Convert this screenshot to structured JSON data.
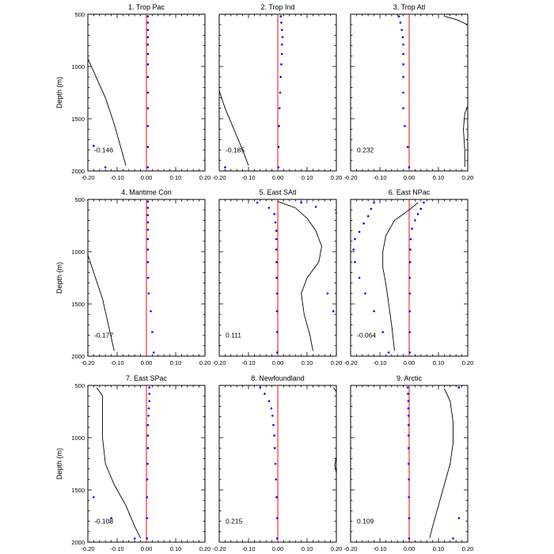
{
  "chart_data": {
    "type": "line",
    "colors": {
      "zero_line": "#ff0000",
      "dots": "#0000ff",
      "curve": "#000000",
      "frame": "#000000"
    },
    "shared": {
      "xlim": [
        -0.2,
        0.2
      ],
      "ylim": [
        500,
        2000
      ],
      "y_inverted": true,
      "x_tick_labels": [
        "-0.20",
        "-0.10",
        "0.00",
        "0.10",
        "0.20"
      ],
      "x_tick_values": [
        -0.2,
        -0.1,
        0.0,
        0.1,
        0.2
      ],
      "y_tick_labels": [
        "500",
        "1000",
        "1500",
        "2000"
      ],
      "y_tick_values": [
        500,
        1000,
        1500,
        2000
      ],
      "ylabel": "Depth (m)"
    },
    "panels": [
      {
        "title": "1. Trop Pac",
        "correlation": "-0.146",
        "curve": [
          [
            -0.22,
            800
          ],
          [
            -0.18,
            1050
          ],
          [
            -0.14,
            1300
          ],
          [
            -0.11,
            1550
          ],
          [
            -0.09,
            1750
          ],
          [
            -0.07,
            1950
          ]
        ],
        "dots": [
          [
            0.005,
            520
          ],
          [
            0.005,
            580
          ],
          [
            0.005,
            650
          ],
          [
            0.005,
            720
          ],
          [
            0.005,
            790
          ],
          [
            0.005,
            880
          ],
          [
            0.005,
            980
          ],
          [
            0.005,
            1100
          ],
          [
            0.005,
            1250
          ],
          [
            0.005,
            1400
          ],
          [
            0.005,
            1570
          ],
          [
            0.005,
            1770
          ],
          [
            -0.18,
            1760
          ],
          [
            -0.14,
            1965
          ],
          [
            0.005,
            1965
          ]
        ]
      },
      {
        "title": "2. Trop Ind",
        "correlation": "-0.185",
        "curve": [
          [
            -0.2,
            1230
          ],
          [
            -0.18,
            1400
          ],
          [
            -0.15,
            1600
          ],
          [
            -0.12,
            1800
          ],
          [
            -0.1,
            1950
          ]
        ],
        "dots": [
          [
            0.01,
            520
          ],
          [
            0.012,
            580
          ],
          [
            0.014,
            650
          ],
          [
            0.016,
            720
          ],
          [
            0.014,
            790
          ],
          [
            0.014,
            880
          ],
          [
            0.012,
            980
          ],
          [
            0.01,
            1100
          ],
          [
            0.008,
            1250
          ],
          [
            0.006,
            1400
          ],
          [
            0.004,
            1570
          ],
          [
            0.003,
            1770
          ],
          [
            0.002,
            1965
          ],
          [
            -0.18,
            1965
          ]
        ]
      },
      {
        "title": "3. Trop Atl",
        "correlation": "0.232",
        "curve": [
          [
            0.12,
            520
          ],
          [
            0.16,
            550
          ],
          [
            0.2,
            600
          ],
          "break",
          [
            0.2,
            1380
          ],
          [
            0.19,
            1450
          ],
          [
            0.185,
            1600
          ],
          [
            0.19,
            1800
          ],
          [
            0.19,
            1960
          ]
        ],
        "dots": [
          [
            -0.035,
            520
          ],
          [
            -0.03,
            580
          ],
          [
            -0.025,
            650
          ],
          [
            -0.022,
            720
          ],
          [
            -0.02,
            790
          ],
          [
            -0.02,
            880
          ],
          [
            -0.02,
            980
          ],
          [
            -0.02,
            1100
          ],
          [
            -0.02,
            1250
          ],
          [
            -0.02,
            1400
          ],
          [
            -0.015,
            1570
          ],
          [
            -0.005,
            1770
          ],
          [
            0.0,
            1965
          ]
        ]
      },
      {
        "title": "4. Maritime Con",
        "correlation": "-0.177",
        "curve": [
          [
            -0.2,
            1030
          ],
          [
            -0.18,
            1200
          ],
          [
            -0.15,
            1450
          ],
          [
            -0.13,
            1700
          ],
          [
            -0.11,
            1950
          ]
        ],
        "dots": [
          [
            0.005,
            520
          ],
          [
            0.005,
            580
          ],
          [
            0.005,
            650
          ],
          [
            0.005,
            720
          ],
          [
            0.005,
            790
          ],
          [
            0.005,
            880
          ],
          [
            0.005,
            980
          ],
          [
            0.005,
            1100
          ],
          [
            0.006,
            1250
          ],
          [
            0.008,
            1400
          ],
          [
            0.015,
            1570
          ],
          [
            0.02,
            1770
          ],
          [
            0.025,
            1965
          ]
        ]
      },
      {
        "title": "5. East SAtl",
        "correlation": "0.111",
        "curve": [
          [
            0.0,
            520
          ],
          [
            0.06,
            580
          ],
          [
            0.1,
            680
          ],
          [
            0.13,
            800
          ],
          [
            0.15,
            950
          ],
          [
            0.14,
            1100
          ],
          [
            0.1,
            1250
          ],
          [
            0.08,
            1400
          ],
          [
            0.09,
            1600
          ],
          [
            0.11,
            1800
          ],
          [
            0.12,
            1950
          ]
        ],
        "dots": [
          [
            -0.07,
            530
          ],
          [
            -0.03,
            580
          ],
          [
            -0.012,
            640
          ],
          [
            -0.008,
            720
          ],
          [
            -0.005,
            800
          ],
          [
            -0.005,
            880
          ],
          [
            -0.005,
            980
          ],
          [
            -0.004,
            1100
          ],
          [
            -0.004,
            1250
          ],
          [
            -0.003,
            1400
          ],
          [
            -0.003,
            1570
          ],
          [
            -0.002,
            1770
          ],
          [
            -0.002,
            1965
          ],
          [
            0.08,
            530
          ],
          [
            0.13,
            570
          ],
          [
            0.2,
            630
          ],
          [
            0.17,
            1400
          ],
          [
            0.19,
            1570
          ]
        ]
      },
      {
        "title": "6. East NPac",
        "correlation": "-0.064",
        "curve": [
          [
            0.03,
            530
          ],
          [
            0.0,
            600
          ],
          [
            -0.05,
            700
          ],
          [
            -0.08,
            850
          ],
          [
            -0.09,
            1000
          ],
          [
            -0.09,
            1150
          ],
          [
            -0.08,
            1300
          ],
          [
            -0.07,
            1500
          ],
          [
            -0.06,
            1700
          ],
          [
            -0.05,
            1950
          ]
        ],
        "dots": [
          [
            -0.12,
            530
          ],
          [
            -0.13,
            590
          ],
          [
            -0.14,
            660
          ],
          [
            -0.155,
            730
          ],
          [
            -0.17,
            810
          ],
          [
            -0.185,
            880
          ],
          [
            -0.19,
            980
          ],
          [
            -0.185,
            1100
          ],
          [
            -0.17,
            1250
          ],
          [
            -0.15,
            1400
          ],
          [
            -0.12,
            1570
          ],
          [
            -0.09,
            1770
          ],
          [
            -0.07,
            1965
          ],
          [
            0.05,
            530
          ],
          [
            0.04,
            590
          ],
          [
            0.03,
            640
          ],
          [
            0.02,
            700
          ],
          [
            0.01,
            780
          ],
          [
            0.005,
            880
          ],
          [
            0.004,
            980
          ],
          [
            0.003,
            1100
          ],
          [
            0.002,
            1250
          ],
          [
            0.002,
            1400
          ],
          [
            0.002,
            1570
          ],
          [
            0.002,
            1770
          ],
          [
            0.002,
            1965
          ]
        ]
      },
      {
        "title": "7. East SPac",
        "correlation": "-0.108",
        "curve": [
          [
            -0.17,
            520
          ],
          [
            -0.15,
            600
          ],
          [
            -0.15,
            800
          ],
          [
            -0.15,
            1000
          ],
          [
            -0.14,
            1250
          ],
          [
            -0.11,
            1450
          ],
          [
            -0.07,
            1650
          ],
          [
            -0.04,
            1850
          ],
          [
            -0.02,
            1960
          ]
        ],
        "dots": [
          [
            0.01,
            520
          ],
          [
            0.01,
            580
          ],
          [
            0.01,
            650
          ],
          [
            0.008,
            720
          ],
          [
            0.007,
            790
          ],
          [
            0.005,
            880
          ],
          [
            0.005,
            980
          ],
          [
            0.005,
            1100
          ],
          [
            0.004,
            1250
          ],
          [
            0.003,
            1400
          ],
          [
            0.002,
            1570
          ],
          [
            0.002,
            1770
          ],
          [
            0.002,
            1965
          ],
          [
            -0.18,
            1570
          ],
          [
            -0.12,
            1770
          ],
          [
            -0.04,
            1965
          ]
        ]
      },
      {
        "title": "8. Newfoundland",
        "correlation": "0.215",
        "curve": [
          [
            0.19,
            520
          ],
          [
            0.2,
            560
          ],
          "break",
          [
            0.2,
            1180
          ],
          [
            0.195,
            1260
          ],
          [
            0.2,
            1340
          ]
        ],
        "dots": [
          [
            -0.06,
            520
          ],
          [
            -0.045,
            580
          ],
          [
            -0.03,
            650
          ],
          [
            -0.022,
            720
          ],
          [
            -0.018,
            790
          ],
          [
            -0.015,
            880
          ],
          [
            -0.012,
            980
          ],
          [
            -0.01,
            1100
          ],
          [
            -0.008,
            1250
          ],
          [
            -0.006,
            1400
          ],
          [
            -0.004,
            1570
          ],
          [
            -0.002,
            1770
          ],
          [
            -0.002,
            1965
          ]
        ]
      },
      {
        "title": "9. Arctic",
        "correlation": "0.109",
        "curve": [
          [
            0.12,
            530
          ],
          [
            0.14,
            650
          ],
          [
            0.15,
            850
          ],
          [
            0.15,
            1050
          ],
          [
            0.14,
            1250
          ],
          [
            0.12,
            1450
          ],
          [
            0.1,
            1650
          ],
          [
            0.08,
            1850
          ],
          [
            0.07,
            1960
          ]
        ],
        "dots": [
          [
            -0.005,
            520
          ],
          [
            -0.004,
            580
          ],
          [
            -0.003,
            650
          ],
          [
            -0.003,
            720
          ],
          [
            -0.002,
            790
          ],
          [
            -0.002,
            880
          ],
          [
            -0.002,
            980
          ],
          [
            -0.002,
            1100
          ],
          [
            -0.002,
            1250
          ],
          [
            -0.001,
            1400
          ],
          [
            -0.001,
            1570
          ],
          [
            0.0,
            1770
          ],
          [
            0.0,
            1965
          ],
          [
            0.17,
            520
          ],
          [
            0.17,
            1770
          ],
          [
            0.15,
            1965
          ]
        ]
      }
    ]
  }
}
